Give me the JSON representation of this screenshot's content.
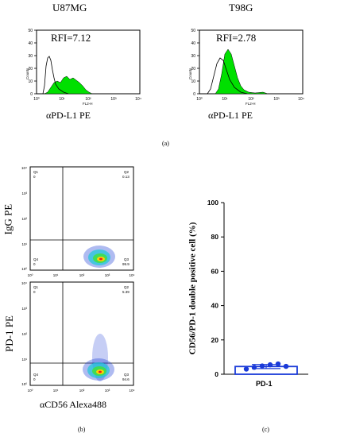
{
  "panel_a": {
    "label": "(a)",
    "histograms": [
      {
        "cell_line": "U87MG",
        "rfi_text": "RFI=7.12",
        "x_channel": "FL2-H",
        "y_axis": "Counts",
        "xlabel": "αPD-L1 PE",
        "y_ticks": [
          "0",
          "10",
          "20",
          "30",
          "40",
          "50"
        ],
        "x_ticks": [
          "10⁰",
          "10¹",
          "10²",
          "10³",
          "10⁴"
        ]
      },
      {
        "cell_line": "T98G",
        "rfi_text": "RFI=2.78",
        "x_channel": "FL2-H",
        "y_axis": "Counts",
        "xlabel": "αPD-L1 PE",
        "y_ticks": [
          "0",
          "10",
          "20",
          "30",
          "40",
          "50"
        ],
        "x_ticks": [
          "10⁰",
          "10¹",
          "10²",
          "10³",
          "10⁴"
        ]
      }
    ],
    "fill_color": "#00e000"
  },
  "panel_b": {
    "label": "(b)",
    "xlabel": "αCD56 Alexa488",
    "plots": [
      {
        "ylabel": "IgG PE",
        "quadrants": {
          "q1": "Q1",
          "q1_val": "0",
          "q2": "Q2",
          "q2_val": "0.13",
          "q3": "Q3",
          "q3_val": "99.9",
          "q4": "Q4",
          "q4_val": "0"
        }
      },
      {
        "ylabel": "PD-1 PE",
        "quadrants": {
          "q1": "Q1",
          "q1_val": "0",
          "q2": "Q2",
          "q2_val": "5.39",
          "q3": "Q3",
          "q3_val": "94.6",
          "q4": "Q4",
          "q4_val": "0"
        }
      }
    ],
    "ticks": [
      "10⁰",
      "10¹",
      "10²",
      "10³",
      "10⁴"
    ]
  },
  "panel_c": {
    "label": "(c)",
    "color": "#1a3ad8"
  },
  "chart_data": {
    "type": "bar",
    "categories": [
      "PD-1"
    ],
    "values": [
      4.5
    ],
    "error": [
      1.2
    ],
    "points": [
      3.0,
      4.0,
      4.8,
      5.5,
      6.0,
      4.6
    ],
    "ylabel": "CD56/PD-1 double positive cell (%)",
    "yticks": [
      "0",
      "20",
      "40",
      "60",
      "80",
      "100"
    ],
    "ylim": [
      0,
      100
    ]
  }
}
